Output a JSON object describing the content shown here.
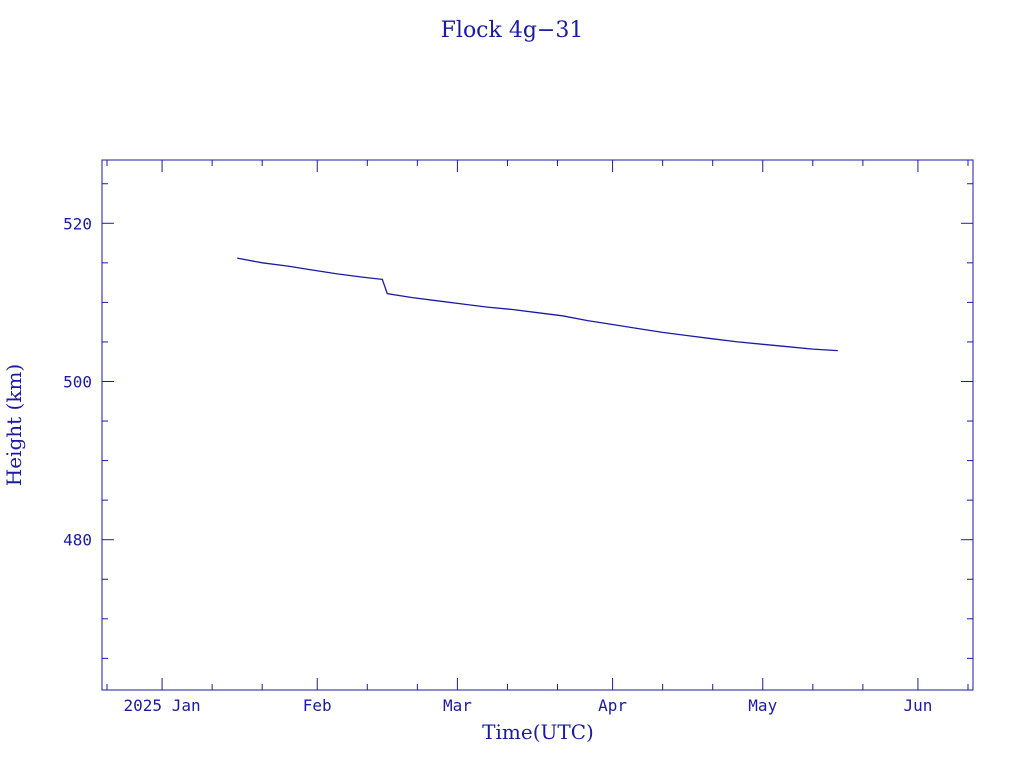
{
  "chart_data": {
    "type": "line",
    "title": "Flock 4g−31",
    "xlabel": "Time(UTC)",
    "ylabel": "Height (km)",
    "x_tick_labels": [
      "2025 Jan",
      "Feb",
      "Mar",
      "Apr",
      "May",
      "Jun"
    ],
    "x_ticks": [
      "2025-01-01",
      "2025-02-01",
      "2025-03-01",
      "2025-04-01",
      "2025-05-01",
      "2025-06-01"
    ],
    "xlim": [
      "2024-12-20",
      "2025-06-12"
    ],
    "y_tick_labels": [
      "480",
      "500",
      "520"
    ],
    "y_ticks": [
      480,
      500,
      520
    ],
    "ylim": [
      461,
      528
    ],
    "grid": false,
    "color": "#1a1aa6",
    "series": [
      {
        "x": [
          "2025-01-16",
          "2025-01-21",
          "2025-01-26",
          "2025-01-31",
          "2025-02-05",
          "2025-02-10",
          "2025-02-14",
          "2025-02-15",
          "2025-02-20",
          "2025-02-25",
          "2025-03-02",
          "2025-03-07",
          "2025-03-12",
          "2025-03-17",
          "2025-03-22",
          "2025-03-27",
          "2025-04-01",
          "2025-04-06",
          "2025-04-11",
          "2025-04-16",
          "2025-04-21",
          "2025-04-26",
          "2025-05-01",
          "2025-05-06",
          "2025-05-11",
          "2025-05-16"
        ],
        "y": [
          515.6,
          515.0,
          514.6,
          514.1,
          513.6,
          513.2,
          512.9,
          511.1,
          510.6,
          510.2,
          509.8,
          509.4,
          509.1,
          508.7,
          508.3,
          507.7,
          507.2,
          506.7,
          506.2,
          505.8,
          505.4,
          505.0,
          504.7,
          504.4,
          504.1,
          503.9
        ]
      }
    ]
  }
}
